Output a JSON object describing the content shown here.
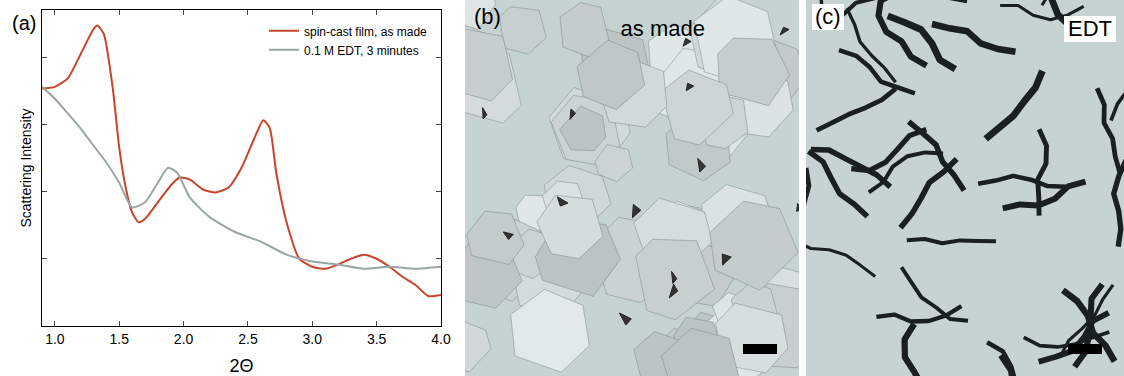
{
  "chart_data": {
    "type": "line",
    "panel_label": "(a)",
    "x_label": "2Θ",
    "y_label": "Scattering Intensity",
    "log": "y",
    "grid": false,
    "legend": "upper right",
    "tick_labels": "x",
    "xlim": [
      0.9,
      4.0
    ],
    "xticks": [
      {
        "value": 1.0,
        "label": "1.0"
      },
      {
        "value": 1.5,
        "label": "1.5"
      },
      {
        "value": 2.0,
        "label": "2.0"
      },
      {
        "value": 2.5,
        "label": "2.5"
      },
      {
        "value": 3.0,
        "label": "3.0"
      },
      {
        "value": 3.5,
        "label": "3.5"
      },
      {
        "value": 4.0,
        "label": "4.0"
      }
    ],
    "ylim": [
      1,
      50000
    ],
    "yticks": [
      10,
      100,
      1000,
      10000
    ],
    "series": [
      {
        "name": "spin-cast film, as made",
        "color": "#c8442a",
        "x": [
          0.9,
          1.0,
          1.1,
          1.2,
          1.3,
          1.33,
          1.38,
          1.45,
          1.5,
          1.55,
          1.6,
          1.65,
          1.7,
          1.8,
          1.9,
          1.97,
          2.05,
          2.15,
          2.25,
          2.35,
          2.45,
          2.55,
          2.62,
          2.67,
          2.72,
          2.8,
          2.9,
          3.0,
          3.1,
          3.2,
          3.3,
          3.4,
          3.5,
          3.6,
          3.7,
          3.8,
          3.9,
          4.0
        ],
        "values": [
          3400,
          3600,
          4800,
          11000,
          26000,
          29500,
          22000,
          3400,
          450,
          115,
          49,
          35,
          39,
          69,
          123,
          161,
          150,
          107,
          97,
          115,
          225,
          620,
          1150,
          870,
          190,
          35,
          10,
          7.6,
          7.1,
          8.2,
          10,
          11.5,
          10,
          7.6,
          5.4,
          4.1,
          2.8,
          2.9
        ]
      },
      {
        "name": "0.1 M EDT, 3 minutes",
        "color": "#9aa5a5",
        "x": [
          0.9,
          1.0,
          1.1,
          1.2,
          1.3,
          1.4,
          1.5,
          1.6,
          1.7,
          1.8,
          1.88,
          1.95,
          2.05,
          2.2,
          2.4,
          2.6,
          2.8,
          3.0,
          3.2,
          3.4,
          3.6,
          3.8,
          4.0
        ],
        "values": [
          3600,
          2400,
          1450,
          870,
          480,
          270,
          135,
          58,
          69,
          135,
          225,
          190,
          81,
          42,
          25,
          18,
          11.5,
          9.1,
          8.2,
          7.1,
          7.6,
          7.1,
          7.6
        ]
      }
    ]
  },
  "panels": [
    {
      "label": "(b)",
      "caption": "as made"
    },
    {
      "label": "(c)",
      "caption": "EDT"
    }
  ]
}
